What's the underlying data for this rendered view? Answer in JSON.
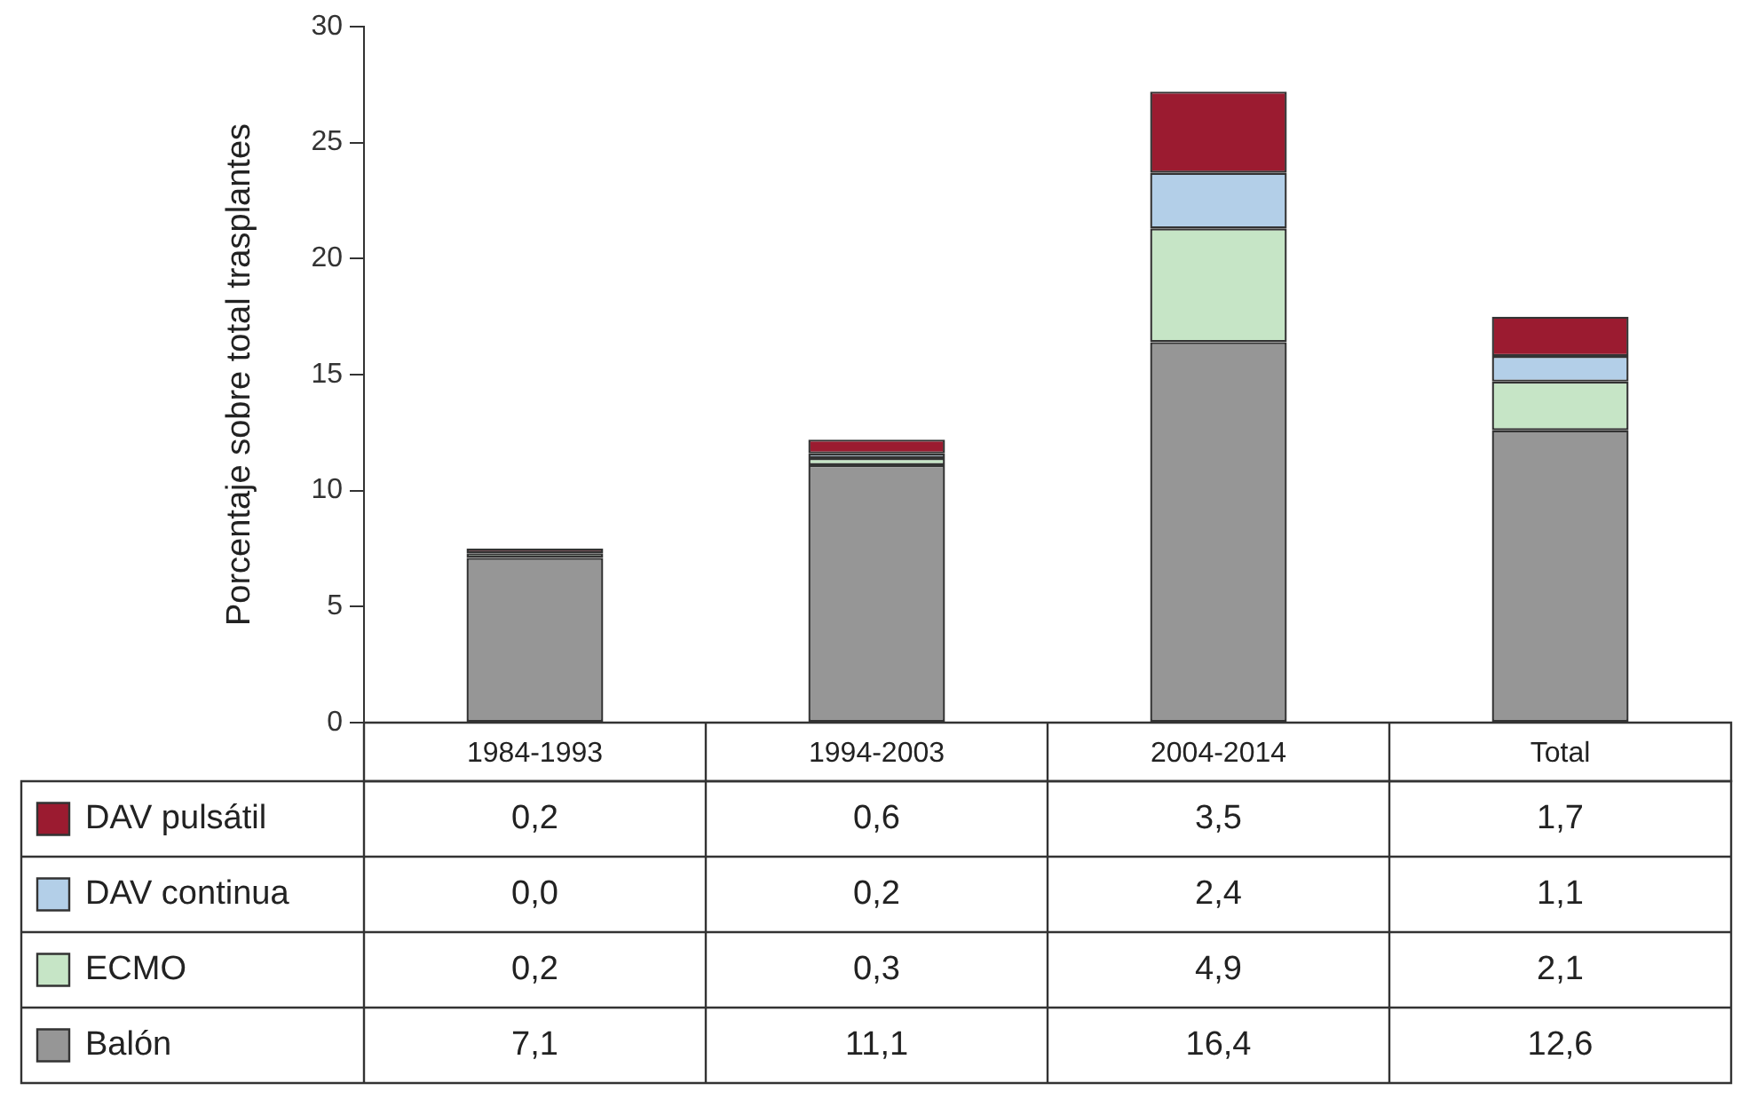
{
  "chart_data": {
    "type": "bar",
    "stacked": true,
    "ylabel": "Porcentaje sobre total trasplantes",
    "categories": [
      "1984-1993",
      "1994-2003",
      "2004-2014",
      "Total"
    ],
    "series": [
      {
        "name": "Balón",
        "color": "#969696",
        "values": [
          7.1,
          11.1,
          16.4,
          12.6
        ],
        "value_labels": [
          "7,1",
          "11,1",
          "16,4",
          "12,6"
        ]
      },
      {
        "name": "ECMO",
        "color": "#c6e5c6",
        "values": [
          0.2,
          0.3,
          4.9,
          2.1
        ],
        "value_labels": [
          "0,2",
          "0,3",
          "4,9",
          "2,1"
        ]
      },
      {
        "name": "DAV continua",
        "color": "#b3cfe8",
        "values": [
          0.0,
          0.2,
          2.4,
          1.1
        ],
        "value_labels": [
          "0,0",
          "0,2",
          "2,4",
          "1,1"
        ]
      },
      {
        "name": "DAV pulsátil",
        "color": "#9b1b30",
        "values": [
          0.2,
          0.6,
          3.5,
          1.7
        ],
        "value_labels": [
          "0,2",
          "0,6",
          "3,5",
          "1,7"
        ]
      }
    ],
    "ylim": [
      0,
      30
    ],
    "yticks": [
      0,
      5,
      10,
      15,
      20,
      25,
      30
    ],
    "grid": false,
    "legend": "bottom left"
  }
}
